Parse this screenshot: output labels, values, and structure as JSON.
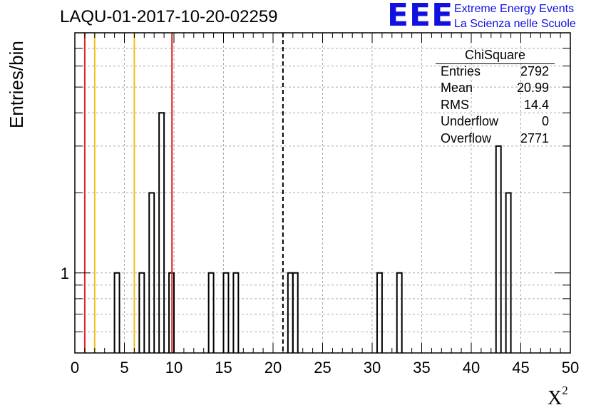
{
  "title": "LAQU-01-2017-10-20-02259",
  "logo": {
    "mark": "EEE",
    "line1": "Extreme Energy Events",
    "line2": "La Scienza nelle Scuole",
    "color": "#1010e0"
  },
  "stats_box": {
    "name": "ChiSquare",
    "rows": [
      {
        "label": "Entries",
        "value": "2792"
      },
      {
        "label": "Mean",
        "value": "20.99"
      },
      {
        "label": "RMS",
        "value": "14.4"
      },
      {
        "label": "Underflow",
        "value": "0"
      },
      {
        "label": "Overflow",
        "value": "2771"
      }
    ]
  },
  "chart_data": {
    "type": "bar",
    "title": "LAQU-01-2017-10-20-02259",
    "xlabel": "X",
    "xlabel_superscript": "2",
    "ylabel": "Entries/bin",
    "xlim": [
      0,
      50
    ],
    "ylim": [
      0.5,
      8
    ],
    "yscale": "log",
    "grid": true,
    "xticks": [
      0,
      5,
      10,
      15,
      20,
      25,
      30,
      35,
      40,
      45,
      50
    ],
    "ytick_labels": [
      {
        "value": 1,
        "label": "1"
      }
    ],
    "bin_width": 0.5,
    "bins": [
      {
        "x": 4.0,
        "count": 1
      },
      {
        "x": 6.5,
        "count": 1
      },
      {
        "x": 7.5,
        "count": 2
      },
      {
        "x": 8.5,
        "count": 4
      },
      {
        "x": 9.5,
        "count": 1
      },
      {
        "x": 13.5,
        "count": 1
      },
      {
        "x": 15.0,
        "count": 1
      },
      {
        "x": 16.0,
        "count": 1
      },
      {
        "x": 21.5,
        "count": 1
      },
      {
        "x": 22.0,
        "count": 1
      },
      {
        "x": 30.5,
        "count": 1
      },
      {
        "x": 32.5,
        "count": 1
      },
      {
        "x": 42.5,
        "count": 3
      },
      {
        "x": 43.5,
        "count": 2
      }
    ],
    "vlines": [
      {
        "x": 1,
        "color": "#dd2222",
        "style": "solid"
      },
      {
        "x": 2,
        "color": "#f0c020",
        "style": "solid"
      },
      {
        "x": 6,
        "color": "#f0c020",
        "style": "solid"
      },
      {
        "x": 9.8,
        "color": "#dd2222",
        "style": "solid"
      },
      {
        "x": 21,
        "color": "#000000",
        "style": "dashed"
      }
    ]
  }
}
